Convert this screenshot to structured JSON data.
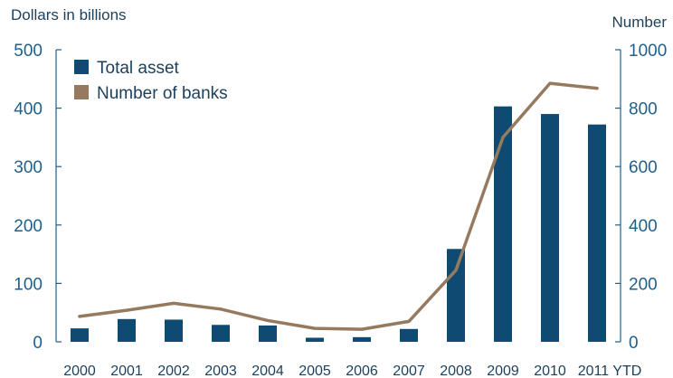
{
  "colors": {
    "bar": "#0e4a72",
    "line": "#957a5f",
    "axis": "#1f5f8b",
    "text": "#1f5f8b",
    "title_text": "#1c3f5a"
  },
  "chart_data": {
    "type": "bar+line",
    "left_axis_label": "Dollars in billions",
    "right_axis_label": "Number",
    "categories": [
      "2000",
      "2001",
      "2002",
      "2003",
      "2004",
      "2005",
      "2006",
      "2007",
      "2008",
      "2009",
      "2010",
      "2011 YTD"
    ],
    "left_ylim": [
      0,
      500
    ],
    "left_ticks": [
      "0",
      "100",
      "200",
      "300",
      "400",
      "500"
    ],
    "right_ylim": [
      0,
      1000
    ],
    "right_ticks": [
      "0",
      "200",
      "400",
      "600",
      "800",
      "1000"
    ],
    "grid": false,
    "legend_placement": "top-left",
    "series": [
      {
        "name": "Total asset",
        "type": "bar",
        "axis": "left",
        "values": [
          23,
          39,
          38,
          29,
          28,
          7,
          8,
          22,
          159,
          403,
          390,
          372
        ]
      },
      {
        "name": "Number of banks",
        "type": "line",
        "axis": "right",
        "values": [
          87,
          108,
          132,
          112,
          73,
          46,
          43,
          70,
          245,
          700,
          885,
          868
        ]
      }
    ]
  }
}
